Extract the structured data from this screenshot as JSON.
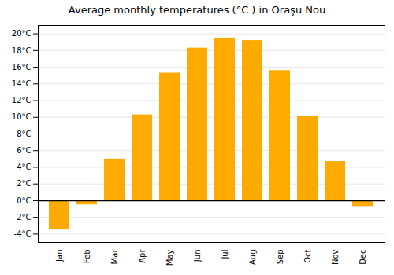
{
  "chart_data": {
    "type": "bar",
    "title": "Average monthly temperatures (°C ) in Oraşu Nou",
    "categories": [
      "Jan",
      "Feb",
      "Mar",
      "Apr",
      "May",
      "Jun",
      "Jul",
      "Aug",
      "Sep",
      "Oct",
      "Nov",
      "Dec"
    ],
    "values": [
      -3.5,
      -0.5,
      5.0,
      10.3,
      15.3,
      18.3,
      19.5,
      19.2,
      15.6,
      10.1,
      4.7,
      -0.7
    ],
    "color": "#FFAA00",
    "ylim": [
      -5,
      21
    ],
    "yticks": [
      {
        "value": -4,
        "label": "-4°C"
      },
      {
        "value": -2,
        "label": "-2°C"
      },
      {
        "value": 0,
        "label": "0°C"
      },
      {
        "value": 2,
        "label": "2°C"
      },
      {
        "value": 4,
        "label": "4°C"
      },
      {
        "value": 6,
        "label": "6°C"
      },
      {
        "value": 8,
        "label": "8°C"
      },
      {
        "value": 10,
        "label": "10°C"
      },
      {
        "value": 12,
        "label": "12°C"
      },
      {
        "value": 14,
        "label": "14°C"
      },
      {
        "value": 16,
        "label": "16°C"
      },
      {
        "value": 18,
        "label": "18°C"
      },
      {
        "value": 20,
        "label": "20°C"
      }
    ],
    "grid": true
  }
}
